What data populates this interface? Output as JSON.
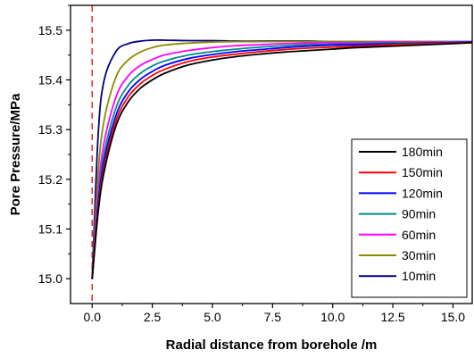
{
  "chart_data": {
    "type": "line",
    "title": "",
    "xlabel": "Radial distance from borehole /m",
    "ylabel": "Pore Pressure/MPa",
    "xlim": [
      -0.9,
      15.8
    ],
    "ylim": [
      14.95,
      15.55
    ],
    "xticks": [
      "0.0",
      "2.5",
      "5.0",
      "7.5",
      "10.0",
      "12.5",
      "15.0"
    ],
    "yticks": [
      "15.0",
      "15.1",
      "15.2",
      "15.3",
      "15.4",
      "15.5"
    ],
    "grid": false,
    "legend_position": "bottom-right",
    "reference_line": {
      "x": 0,
      "color": "#e8312b",
      "style": "dashed"
    },
    "series": [
      {
        "name": "180min",
        "color": "#000000",
        "x": [
          0,
          0.25,
          0.5,
          1,
          1.5,
          2,
          2.5,
          3,
          4,
          5,
          6,
          7,
          8,
          9,
          10,
          11,
          12,
          13,
          14,
          15,
          15.8
        ],
        "y": [
          15.0,
          15.134,
          15.216,
          15.309,
          15.356,
          15.383,
          15.4,
          15.413,
          15.43,
          15.44,
          15.447,
          15.452,
          15.456,
          15.459,
          15.462,
          15.465,
          15.467,
          15.469,
          15.471,
          15.473,
          15.475
        ]
      },
      {
        "name": "150min",
        "color": "#ff0000",
        "x": [
          0,
          0.25,
          0.5,
          1,
          1.5,
          2,
          2.5,
          3,
          4,
          5,
          6,
          7,
          8,
          9,
          10,
          11,
          12,
          13,
          14,
          15,
          15.8
        ],
        "y": [
          15.0,
          15.141,
          15.226,
          15.319,
          15.366,
          15.392,
          15.409,
          15.421,
          15.437,
          15.446,
          15.452,
          15.457,
          15.461,
          15.464,
          15.466,
          15.468,
          15.47,
          15.472,
          15.473,
          15.474,
          15.475
        ]
      },
      {
        "name": "120min",
        "color": "#0000ff",
        "x": [
          0,
          0.25,
          0.5,
          1,
          1.5,
          2,
          2.5,
          3,
          4,
          5,
          6,
          7,
          8,
          9,
          10,
          11,
          12,
          13,
          14,
          15,
          15.8
        ],
        "y": [
          15.0,
          15.149,
          15.238,
          15.33,
          15.376,
          15.401,
          15.417,
          15.429,
          15.443,
          15.451,
          15.457,
          15.461,
          15.465,
          15.468,
          15.47,
          15.471,
          15.472,
          15.473,
          15.474,
          15.475,
          15.476
        ]
      },
      {
        "name": "90min",
        "color": "#008b8b",
        "x": [
          0,
          0.25,
          0.5,
          1,
          1.5,
          2,
          2.5,
          3,
          4,
          5,
          6,
          7,
          8,
          9,
          10,
          11,
          12,
          13,
          14,
          15,
          15.8
        ],
        "y": [
          15.0,
          15.16,
          15.253,
          15.345,
          15.389,
          15.413,
          15.428,
          15.438,
          15.45,
          15.457,
          15.462,
          15.466,
          15.469,
          15.471,
          15.472,
          15.473,
          15.474,
          15.475,
          15.475,
          15.476,
          15.476
        ]
      },
      {
        "name": "60min",
        "color": "#ff00ff",
        "x": [
          0,
          0.25,
          0.5,
          1,
          1.5,
          2,
          2.5,
          3,
          4,
          5,
          6,
          7,
          8,
          9,
          10,
          11,
          12,
          13,
          14,
          15,
          15.8
        ],
        "y": [
          15.0,
          15.177,
          15.275,
          15.367,
          15.408,
          15.429,
          15.441,
          15.45,
          15.459,
          15.465,
          15.469,
          15.471,
          15.473,
          15.474,
          15.475,
          15.475,
          15.476,
          15.476,
          15.476,
          15.477,
          15.477
        ]
      },
      {
        "name": "30min",
        "color": "#8b8b00",
        "x": [
          0,
          0.25,
          0.5,
          1,
          1.5,
          2,
          2.5,
          3,
          4,
          5,
          6,
          7,
          8,
          9,
          10,
          11,
          12,
          13,
          14,
          15,
          15.8
        ],
        "y": [
          15.0,
          15.214,
          15.32,
          15.407,
          15.44,
          15.456,
          15.465,
          15.47,
          15.474,
          15.476,
          15.477,
          15.477,
          15.477,
          15.477,
          15.477,
          15.477,
          15.477,
          15.477,
          15.477,
          15.477,
          15.477
        ]
      },
      {
        "name": "10min",
        "color": "#000080",
        "x": [
          0,
          0.25,
          0.5,
          1,
          1.5,
          2,
          2.5,
          3,
          4,
          5,
          6,
          7,
          8,
          9,
          10,
          11,
          12,
          13,
          14,
          15,
          15.8
        ],
        "y": [
          15.0,
          15.29,
          15.4,
          15.458,
          15.473,
          15.478,
          15.48,
          15.48,
          15.479,
          15.479,
          15.478,
          15.478,
          15.478,
          15.478,
          15.477,
          15.477,
          15.477,
          15.477,
          15.477,
          15.477,
          15.477
        ]
      }
    ]
  }
}
